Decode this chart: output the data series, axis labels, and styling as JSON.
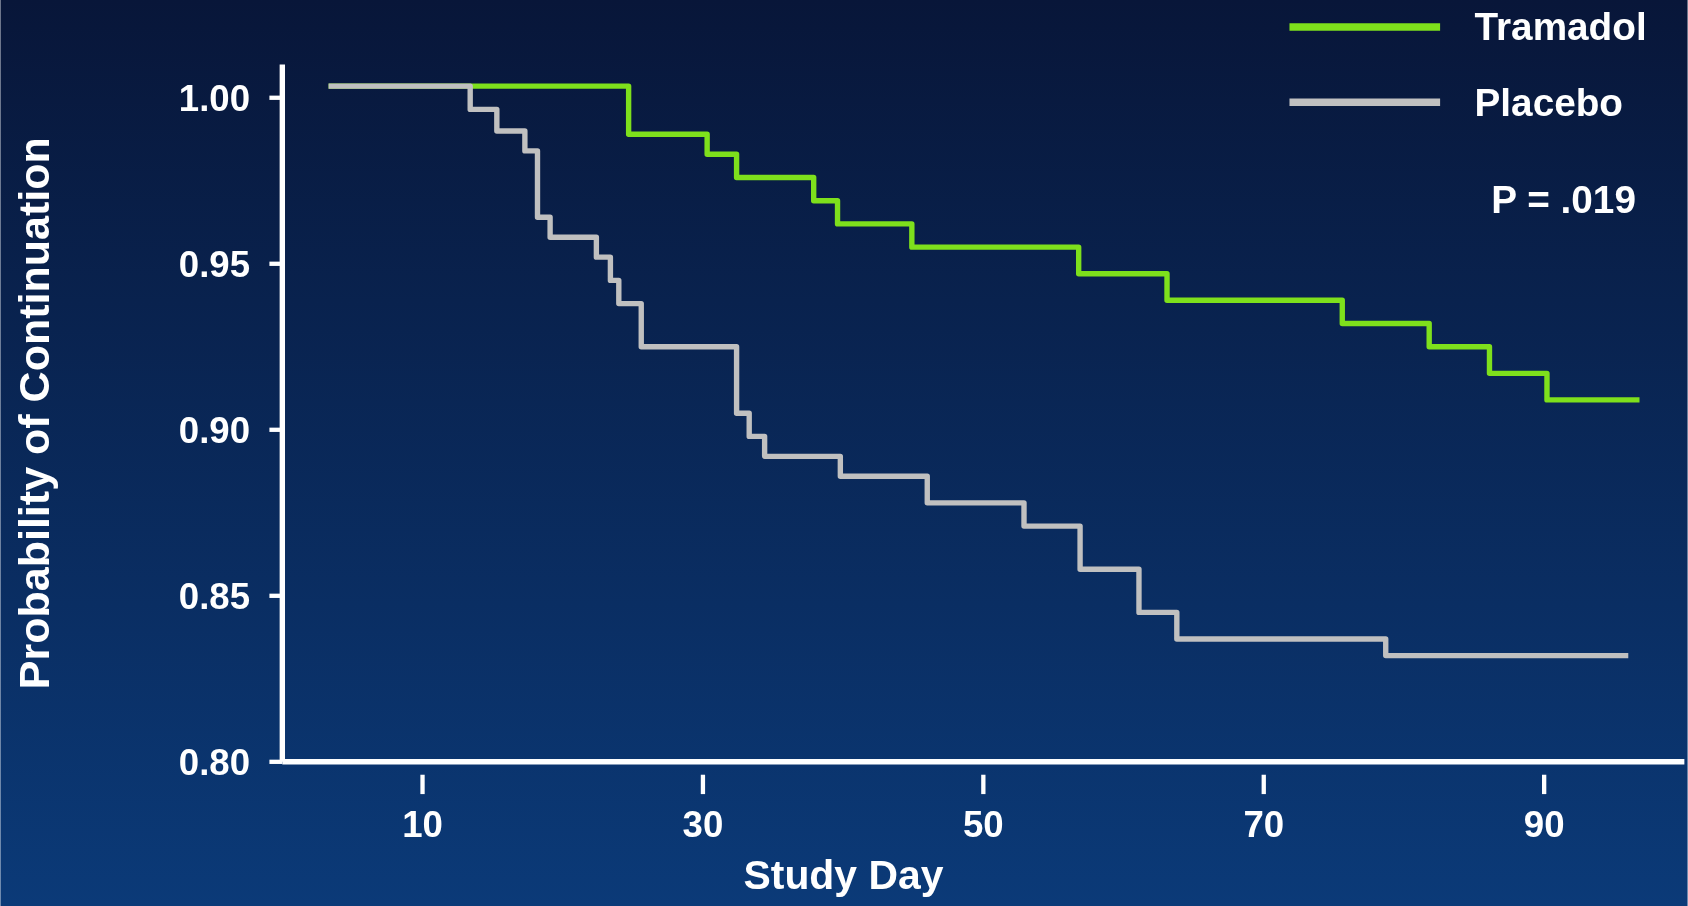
{
  "chart_data": {
    "type": "step",
    "xlabel": "Study Day",
    "ylabel": "Probability of Continuation",
    "xlim": [
      0,
      100
    ],
    "ylim": [
      0.8,
      1.01
    ],
    "xticks": [
      10,
      30,
      50,
      70,
      90
    ],
    "yticks": [
      {
        "value": 0.8,
        "label": "0.80"
      },
      {
        "value": 0.85,
        "label": "0.85"
      },
      {
        "value": 0.9,
        "label": "0.90"
      },
      {
        "value": 0.95,
        "label": "0.95"
      },
      {
        "value": 1,
        "label": "1.00"
      }
    ],
    "legend": "top right",
    "grid": false,
    "marker": "none",
    "line_style": "solid",
    "annotations": [
      "P = .019"
    ],
    "series": [
      {
        "name": "Tramadol",
        "color": "#7ee01c",
        "x": [
          3.3,
          24.7,
          30.3,
          32.4,
          37.9,
          39.6,
          44.9,
          56.8,
          63.1,
          75.6,
          81.8,
          86.1,
          90.2,
          96.8
        ],
        "values": [
          1.0035,
          0.989,
          0.983,
          0.976,
          0.969,
          0.962,
          0.955,
          0.947,
          0.939,
          0.932,
          0.925,
          0.917,
          0.909,
          0.909
        ]
      },
      {
        "name": "Placebo",
        "color": "#c0c0c0",
        "x": [
          3.3,
          13.4,
          15.3,
          17.3,
          18.2,
          19.1,
          22.4,
          23.4,
          24.0,
          25.6,
          32.4,
          33.3,
          34.4,
          39.8,
          46.0,
          52.9,
          56.9,
          61.1,
          63.8,
          78.7,
          96.0
        ],
        "values": [
          1.0035,
          0.9965,
          0.99,
          0.984,
          0.964,
          0.958,
          0.952,
          0.945,
          0.938,
          0.925,
          0.905,
          0.898,
          0.892,
          0.886,
          0.878,
          0.871,
          0.858,
          0.845,
          0.837,
          0.832,
          0.832
        ]
      }
    ]
  }
}
